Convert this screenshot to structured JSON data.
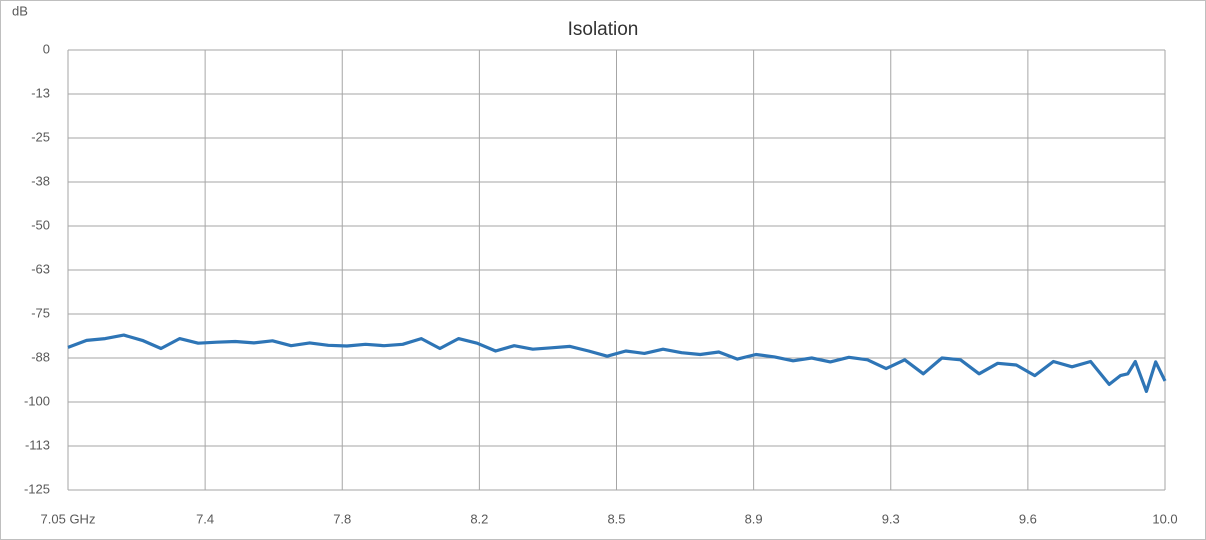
{
  "chart_data": {
    "type": "line",
    "title": "Isolation",
    "y_label": "dB",
    "x": [
      7.05,
      7.1,
      7.15,
      7.2,
      7.25,
      7.3,
      7.35,
      7.4,
      7.45,
      7.5,
      7.55,
      7.6,
      7.65,
      7.7,
      7.75,
      7.8,
      7.85,
      7.9,
      7.95,
      8.0,
      8.05,
      8.1,
      8.15,
      8.2,
      8.25,
      8.3,
      8.35,
      8.4,
      8.45,
      8.5,
      8.55,
      8.6,
      8.65,
      8.7,
      8.75,
      8.8,
      8.85,
      8.9,
      8.95,
      9.0,
      9.05,
      9.1,
      9.15,
      9.2,
      9.25,
      9.3,
      9.35,
      9.4,
      9.45,
      9.5,
      9.55,
      9.6,
      9.65,
      9.7,
      9.75,
      9.8,
      9.85,
      9.88,
      9.9,
      9.92,
      9.95,
      9.975,
      10.0
    ],
    "series": [
      {
        "name": "Isolation",
        "color": "#2e75b6",
        "values": [
          -84.5,
          -82.5,
          -82.0,
          -81.0,
          -82.5,
          -84.8,
          -82.0,
          -83.3,
          -83.0,
          -82.8,
          -83.2,
          -82.6,
          -84.0,
          -83.2,
          -83.9,
          -84.1,
          -83.6,
          -84.0,
          -83.6,
          -82.0,
          -84.8,
          -82.0,
          -83.3,
          -85.5,
          -84.0,
          -85.0,
          -84.6,
          -84.2,
          -85.5,
          -87.0,
          -85.5,
          -86.2,
          -85.0,
          -86.0,
          -86.5,
          -85.8,
          -87.8,
          -86.5,
          -87.2,
          -88.3,
          -87.5,
          -88.6,
          -87.3,
          -88.0,
          -90.5,
          -88.0,
          -92.0,
          -87.5,
          -88.0,
          -92.0,
          -89.0,
          -89.5,
          -92.5,
          -88.5,
          -90.0,
          -88.5,
          -95.0,
          -92.5,
          -92.0,
          -88.5,
          -97.0,
          -88.6,
          -94.0
        ]
      }
    ],
    "xlim": [
      7.05,
      10.0
    ],
    "xticks": [
      {
        "value": 7.05,
        "label": "7.05 GHz"
      },
      {
        "value": 7.41875,
        "label": "7.4"
      },
      {
        "value": 7.7875,
        "label": "7.8"
      },
      {
        "value": 8.15625,
        "label": "8.2"
      },
      {
        "value": 8.525,
        "label": "8.5"
      },
      {
        "value": 8.89375,
        "label": "8.9"
      },
      {
        "value": 9.2625,
        "label": "9.3"
      },
      {
        "value": 9.63125,
        "label": "9.6"
      },
      {
        "value": 10.0,
        "label": "10.0"
      }
    ],
    "ylim": [
      -125,
      0
    ],
    "yticks": [
      0,
      {
        "value": -12.5,
        "label": "-13"
      },
      -25,
      {
        "value": -37.5,
        "label": "-38"
      },
      -50,
      {
        "value": -62.5,
        "label": "-63"
      },
      -75,
      {
        "value": -87.5,
        "label": "-88"
      },
      -100,
      {
        "value": -112.5,
        "label": "-113"
      },
      -125
    ],
    "grid": true
  }
}
